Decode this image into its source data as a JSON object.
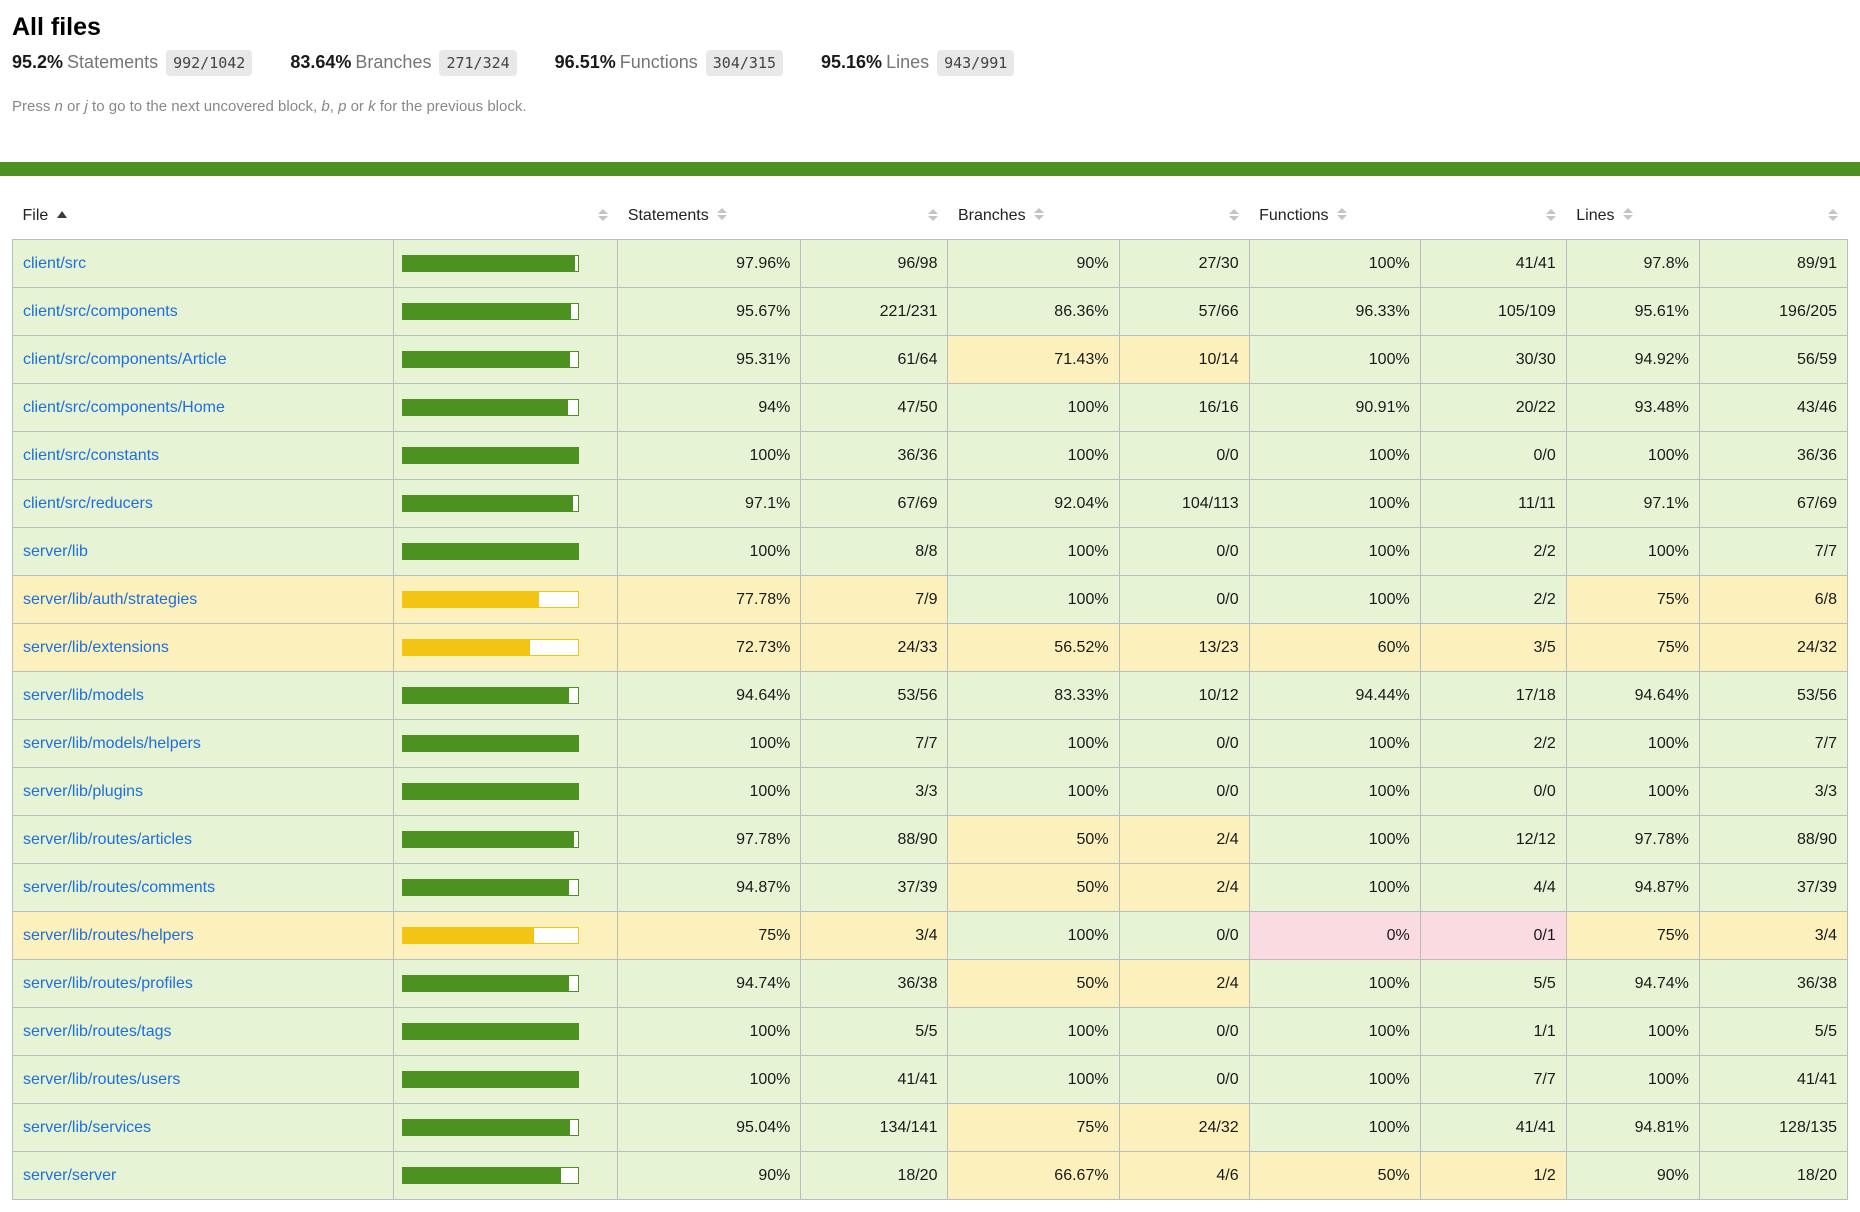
{
  "header": {
    "title": "All files",
    "stats": [
      {
        "pct": "95.2%",
        "label": "Statements",
        "fraction": "992/1042"
      },
      {
        "pct": "83.64%",
        "label": "Branches",
        "fraction": "271/324"
      },
      {
        "pct": "96.51%",
        "label": "Functions",
        "fraction": "304/315"
      },
      {
        "pct": "95.16%",
        "label": "Lines",
        "fraction": "943/991"
      }
    ],
    "hint_segments": [
      {
        "text": "Press "
      },
      {
        "text": "n",
        "em": true
      },
      {
        "text": " or "
      },
      {
        "text": "j",
        "em": true
      },
      {
        "text": " to go to the next uncovered block, "
      },
      {
        "text": "b",
        "em": true
      },
      {
        "text": ", "
      },
      {
        "text": "p",
        "em": true
      },
      {
        "text": " or "
      },
      {
        "text": "k",
        "em": true
      },
      {
        "text": " for the previous block."
      }
    ]
  },
  "colors": {
    "status_line": "#4d9221",
    "high_bg": "#e6f3d4",
    "medium_bg": "#fcf0bd",
    "low_bg": "#fadbe1",
    "bar_green": "#4d9221",
    "bar_yellow": "#f2c514",
    "link": "#1e6edc"
  },
  "table": {
    "columns": {
      "file": "File",
      "statements": "Statements",
      "branches": "Branches",
      "functions": "Functions",
      "lines": "Lines"
    },
    "sort": {
      "column": "file",
      "direction": "asc"
    },
    "rows": [
      {
        "file": "client/src",
        "level": "high",
        "bar_pct": 97.96,
        "metrics": [
          {
            "pct": "97.96%",
            "raw": "96/98",
            "class": "high"
          },
          {
            "pct": "90%",
            "raw": "27/30",
            "class": "high"
          },
          {
            "pct": "100%",
            "raw": "41/41",
            "class": "high"
          },
          {
            "pct": "97.8%",
            "raw": "89/91",
            "class": "high"
          }
        ]
      },
      {
        "file": "client/src/components",
        "level": "high",
        "bar_pct": 95.67,
        "metrics": [
          {
            "pct": "95.67%",
            "raw": "221/231",
            "class": "high"
          },
          {
            "pct": "86.36%",
            "raw": "57/66",
            "class": "high"
          },
          {
            "pct": "96.33%",
            "raw": "105/109",
            "class": "high"
          },
          {
            "pct": "95.61%",
            "raw": "196/205",
            "class": "high"
          }
        ]
      },
      {
        "file": "client/src/components/Article",
        "level": "high",
        "bar_pct": 95.31,
        "metrics": [
          {
            "pct": "95.31%",
            "raw": "61/64",
            "class": "high"
          },
          {
            "pct": "71.43%",
            "raw": "10/14",
            "class": "medium"
          },
          {
            "pct": "100%",
            "raw": "30/30",
            "class": "high"
          },
          {
            "pct": "94.92%",
            "raw": "56/59",
            "class": "high"
          }
        ]
      },
      {
        "file": "client/src/components/Home",
        "level": "high",
        "bar_pct": 94,
        "metrics": [
          {
            "pct": "94%",
            "raw": "47/50",
            "class": "high"
          },
          {
            "pct": "100%",
            "raw": "16/16",
            "class": "high"
          },
          {
            "pct": "90.91%",
            "raw": "20/22",
            "class": "high"
          },
          {
            "pct": "93.48%",
            "raw": "43/46",
            "class": "high"
          }
        ]
      },
      {
        "file": "client/src/constants",
        "level": "high",
        "bar_pct": 100,
        "metrics": [
          {
            "pct": "100%",
            "raw": "36/36",
            "class": "high"
          },
          {
            "pct": "100%",
            "raw": "0/0",
            "class": "high"
          },
          {
            "pct": "100%",
            "raw": "0/0",
            "class": "high"
          },
          {
            "pct": "100%",
            "raw": "36/36",
            "class": "high"
          }
        ]
      },
      {
        "file": "client/src/reducers",
        "level": "high",
        "bar_pct": 97.1,
        "metrics": [
          {
            "pct": "97.1%",
            "raw": "67/69",
            "class": "high"
          },
          {
            "pct": "92.04%",
            "raw": "104/113",
            "class": "high"
          },
          {
            "pct": "100%",
            "raw": "11/11",
            "class": "high"
          },
          {
            "pct": "97.1%",
            "raw": "67/69",
            "class": "high"
          }
        ]
      },
      {
        "file": "server/lib",
        "level": "high",
        "bar_pct": 100,
        "metrics": [
          {
            "pct": "100%",
            "raw": "8/8",
            "class": "high"
          },
          {
            "pct": "100%",
            "raw": "0/0",
            "class": "high"
          },
          {
            "pct": "100%",
            "raw": "2/2",
            "class": "high"
          },
          {
            "pct": "100%",
            "raw": "7/7",
            "class": "high"
          }
        ]
      },
      {
        "file": "server/lib/auth/strategies",
        "level": "medium",
        "bar_pct": 77.78,
        "metrics": [
          {
            "pct": "77.78%",
            "raw": "7/9",
            "class": "medium"
          },
          {
            "pct": "100%",
            "raw": "0/0",
            "class": "high"
          },
          {
            "pct": "100%",
            "raw": "2/2",
            "class": "high"
          },
          {
            "pct": "75%",
            "raw": "6/8",
            "class": "medium"
          }
        ]
      },
      {
        "file": "server/lib/extensions",
        "level": "medium",
        "bar_pct": 72.73,
        "metrics": [
          {
            "pct": "72.73%",
            "raw": "24/33",
            "class": "medium"
          },
          {
            "pct": "56.52%",
            "raw": "13/23",
            "class": "medium"
          },
          {
            "pct": "60%",
            "raw": "3/5",
            "class": "medium"
          },
          {
            "pct": "75%",
            "raw": "24/32",
            "class": "medium"
          }
        ]
      },
      {
        "file": "server/lib/models",
        "level": "high",
        "bar_pct": 94.64,
        "metrics": [
          {
            "pct": "94.64%",
            "raw": "53/56",
            "class": "high"
          },
          {
            "pct": "83.33%",
            "raw": "10/12",
            "class": "high"
          },
          {
            "pct": "94.44%",
            "raw": "17/18",
            "class": "high"
          },
          {
            "pct": "94.64%",
            "raw": "53/56",
            "class": "high"
          }
        ]
      },
      {
        "file": "server/lib/models/helpers",
        "level": "high",
        "bar_pct": 100,
        "metrics": [
          {
            "pct": "100%",
            "raw": "7/7",
            "class": "high"
          },
          {
            "pct": "100%",
            "raw": "0/0",
            "class": "high"
          },
          {
            "pct": "100%",
            "raw": "2/2",
            "class": "high"
          },
          {
            "pct": "100%",
            "raw": "7/7",
            "class": "high"
          }
        ]
      },
      {
        "file": "server/lib/plugins",
        "level": "high",
        "bar_pct": 100,
        "metrics": [
          {
            "pct": "100%",
            "raw": "3/3",
            "class": "high"
          },
          {
            "pct": "100%",
            "raw": "0/0",
            "class": "high"
          },
          {
            "pct": "100%",
            "raw": "0/0",
            "class": "high"
          },
          {
            "pct": "100%",
            "raw": "3/3",
            "class": "high"
          }
        ]
      },
      {
        "file": "server/lib/routes/articles",
        "level": "high",
        "bar_pct": 97.78,
        "metrics": [
          {
            "pct": "97.78%",
            "raw": "88/90",
            "class": "high"
          },
          {
            "pct": "50%",
            "raw": "2/4",
            "class": "medium"
          },
          {
            "pct": "100%",
            "raw": "12/12",
            "class": "high"
          },
          {
            "pct": "97.78%",
            "raw": "88/90",
            "class": "high"
          }
        ]
      },
      {
        "file": "server/lib/routes/comments",
        "level": "high",
        "bar_pct": 94.87,
        "metrics": [
          {
            "pct": "94.87%",
            "raw": "37/39",
            "class": "high"
          },
          {
            "pct": "50%",
            "raw": "2/4",
            "class": "medium"
          },
          {
            "pct": "100%",
            "raw": "4/4",
            "class": "high"
          },
          {
            "pct": "94.87%",
            "raw": "37/39",
            "class": "high"
          }
        ]
      },
      {
        "file": "server/lib/routes/helpers",
        "level": "medium",
        "bar_pct": 75,
        "metrics": [
          {
            "pct": "75%",
            "raw": "3/4",
            "class": "medium"
          },
          {
            "pct": "100%",
            "raw": "0/0",
            "class": "high"
          },
          {
            "pct": "0%",
            "raw": "0/1",
            "class": "low"
          },
          {
            "pct": "75%",
            "raw": "3/4",
            "class": "medium"
          }
        ]
      },
      {
        "file": "server/lib/routes/profiles",
        "level": "high",
        "bar_pct": 94.74,
        "metrics": [
          {
            "pct": "94.74%",
            "raw": "36/38",
            "class": "high"
          },
          {
            "pct": "50%",
            "raw": "2/4",
            "class": "medium"
          },
          {
            "pct": "100%",
            "raw": "5/5",
            "class": "high"
          },
          {
            "pct": "94.74%",
            "raw": "36/38",
            "class": "high"
          }
        ]
      },
      {
        "file": "server/lib/routes/tags",
        "level": "high",
        "bar_pct": 100,
        "metrics": [
          {
            "pct": "100%",
            "raw": "5/5",
            "class": "high"
          },
          {
            "pct": "100%",
            "raw": "0/0",
            "class": "high"
          },
          {
            "pct": "100%",
            "raw": "1/1",
            "class": "high"
          },
          {
            "pct": "100%",
            "raw": "5/5",
            "class": "high"
          }
        ]
      },
      {
        "file": "server/lib/routes/users",
        "level": "high",
        "bar_pct": 100,
        "metrics": [
          {
            "pct": "100%",
            "raw": "41/41",
            "class": "high"
          },
          {
            "pct": "100%",
            "raw": "0/0",
            "class": "high"
          },
          {
            "pct": "100%",
            "raw": "7/7",
            "class": "high"
          },
          {
            "pct": "100%",
            "raw": "41/41",
            "class": "high"
          }
        ]
      },
      {
        "file": "server/lib/services",
        "level": "high",
        "bar_pct": 95.04,
        "metrics": [
          {
            "pct": "95.04%",
            "raw": "134/141",
            "class": "high"
          },
          {
            "pct": "75%",
            "raw": "24/32",
            "class": "medium"
          },
          {
            "pct": "100%",
            "raw": "41/41",
            "class": "high"
          },
          {
            "pct": "94.81%",
            "raw": "128/135",
            "class": "high"
          }
        ]
      },
      {
        "file": "server/server",
        "level": "high",
        "bar_pct": 90,
        "metrics": [
          {
            "pct": "90%",
            "raw": "18/20",
            "class": "high"
          },
          {
            "pct": "66.67%",
            "raw": "4/6",
            "class": "medium"
          },
          {
            "pct": "50%",
            "raw": "1/2",
            "class": "medium"
          },
          {
            "pct": "90%",
            "raw": "18/20",
            "class": "high"
          }
        ]
      }
    ]
  }
}
